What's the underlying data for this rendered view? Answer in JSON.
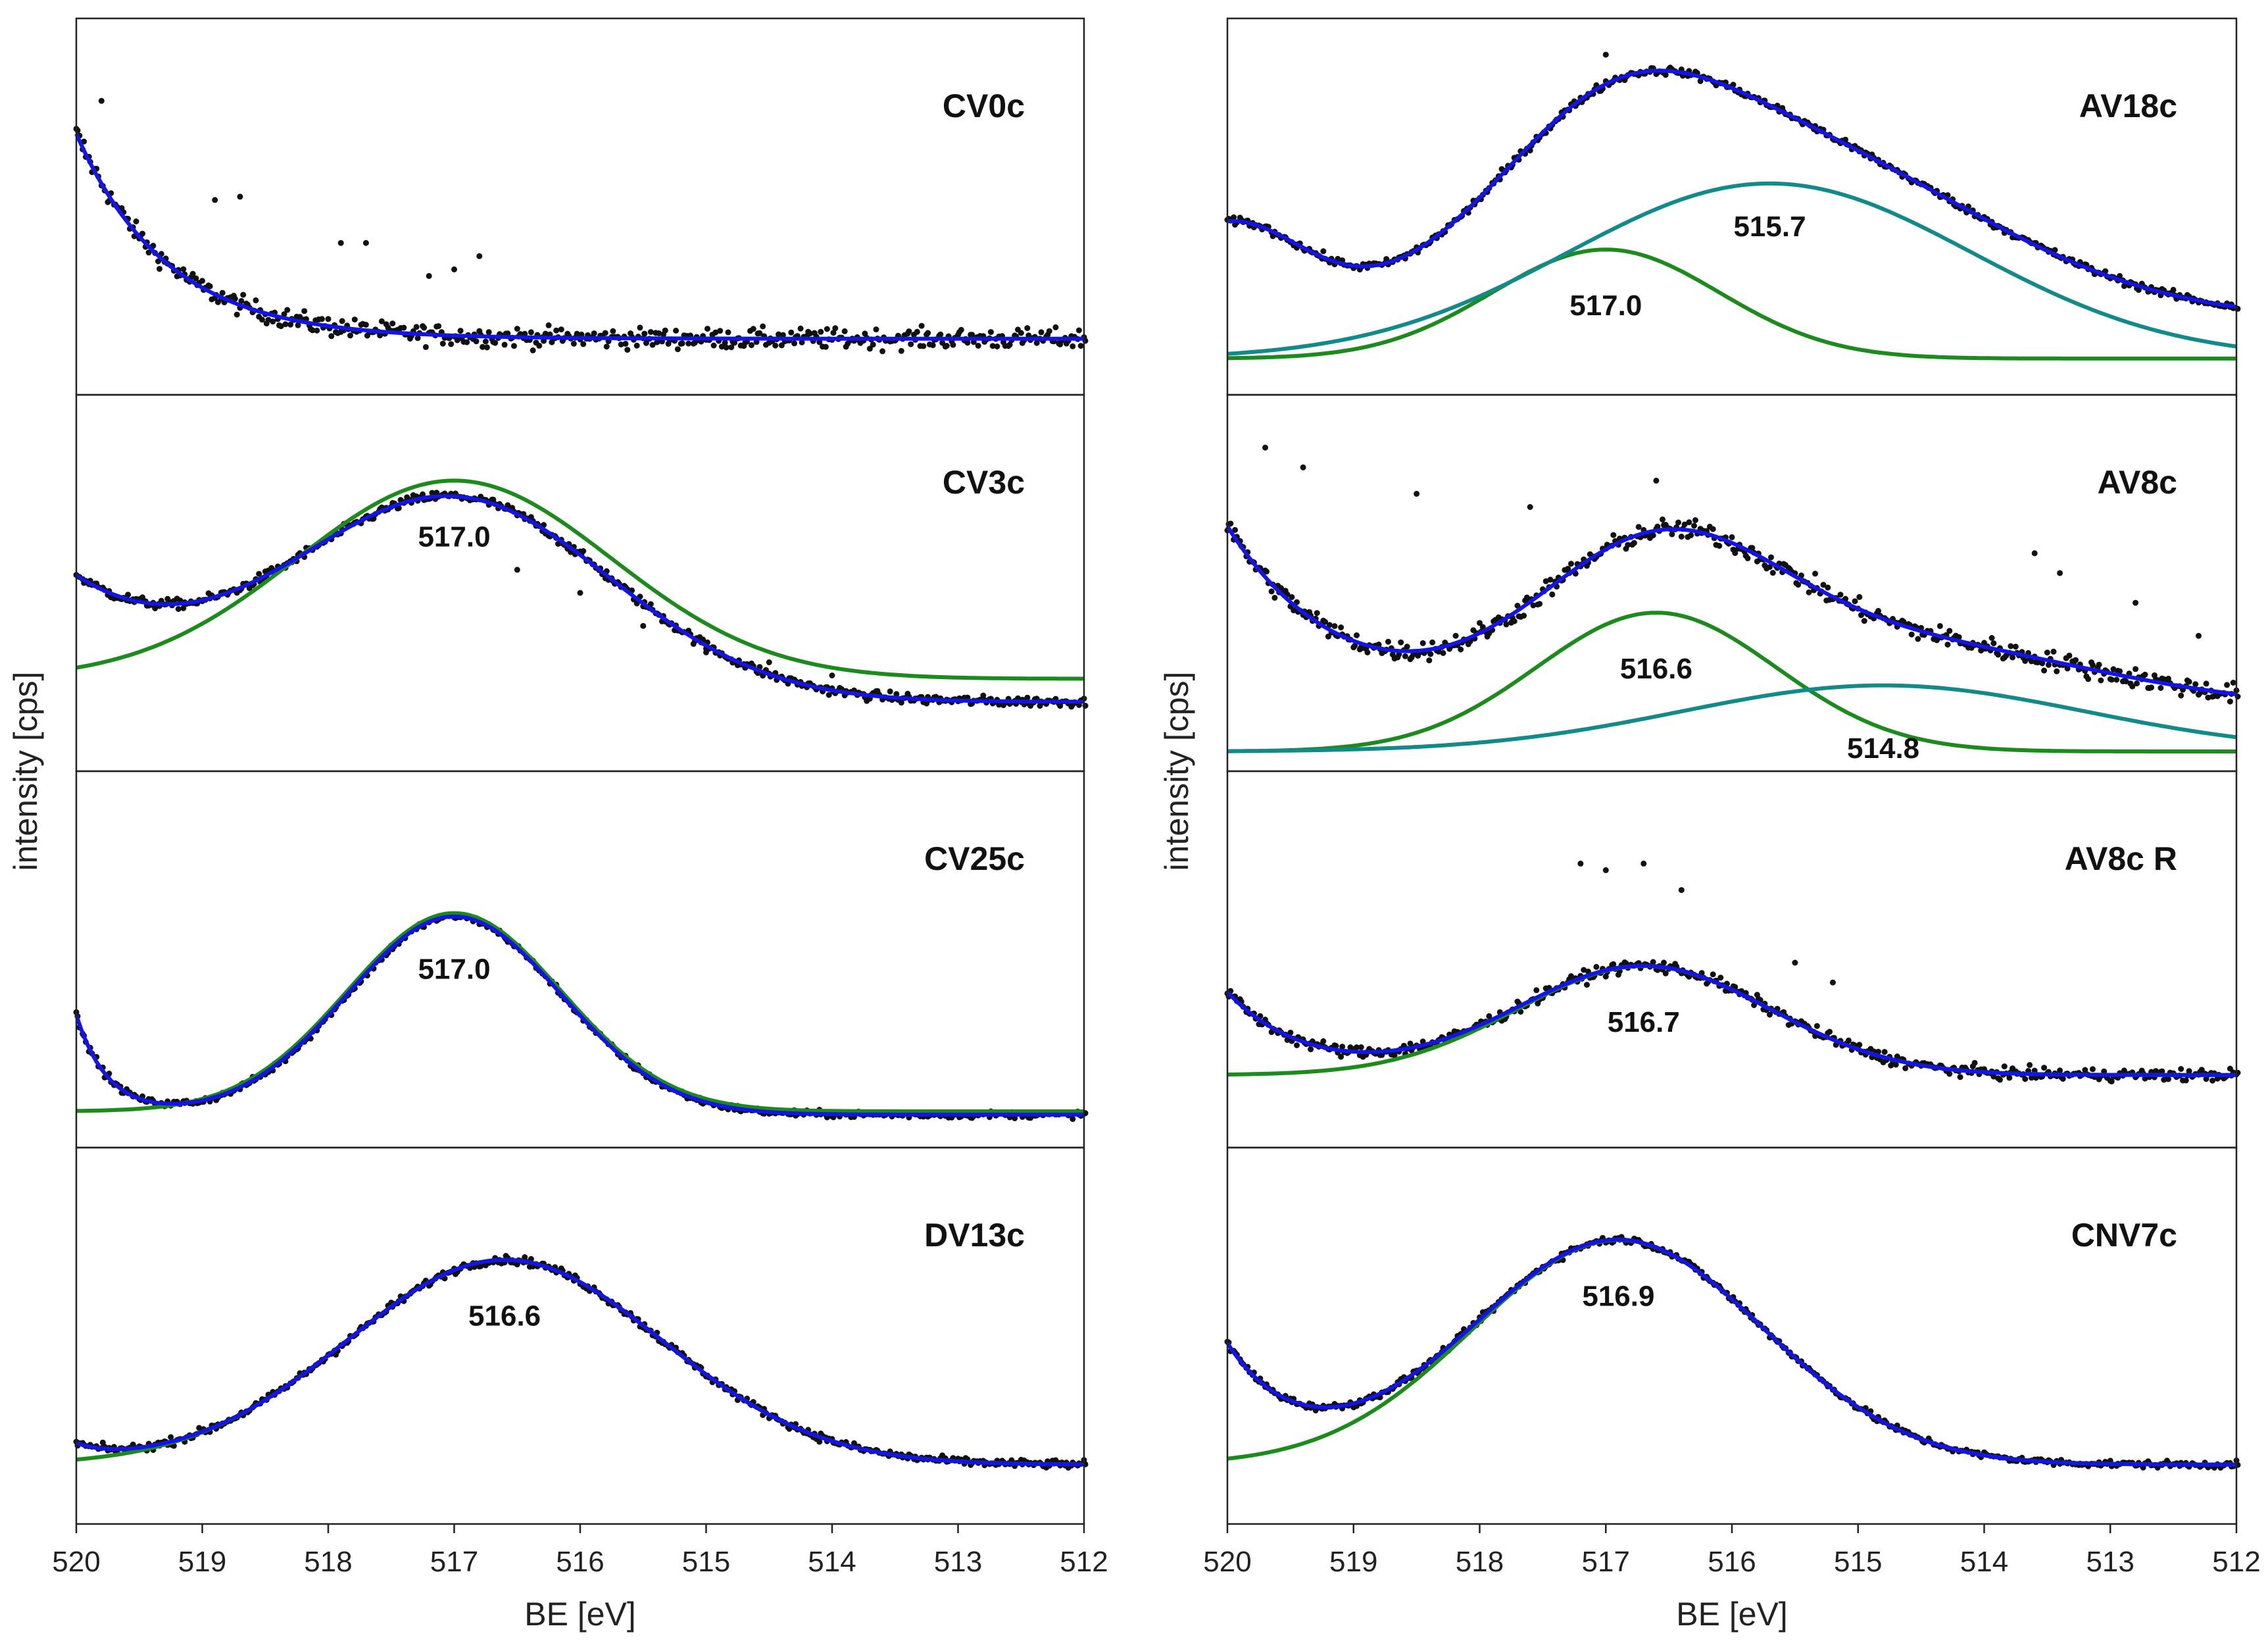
{
  "figure": {
    "description_free": true,
    "colors": {
      "envelope": "#1414e6",
      "component_primary": "#1d8a1d",
      "component_secondary": "#138a8a",
      "data_points": "#111111",
      "smoothed": "#111111",
      "frame": "#222222"
    }
  },
  "chart_data": [
    {
      "type": "line",
      "panel": "CV0c",
      "column": "left",
      "row": 0,
      "xlabel": "BE [eV]",
      "ylabel": "intensity [cps]",
      "xlim": [
        520,
        512
      ],
      "ylim": [
        0,
        1
      ],
      "ticks": [
        520,
        519,
        518,
        517,
        516,
        515,
        514,
        513,
        512
      ],
      "background": {
        "a": 0.11,
        "b": 0.62,
        "decay": 0.72
      },
      "components": [],
      "noise": 0.03,
      "outliers": [
        [
          519.8,
          0.83
        ],
        [
          518.9,
          0.53
        ],
        [
          518.7,
          0.54
        ],
        [
          517.9,
          0.4
        ],
        [
          517.7,
          0.4
        ],
        [
          517.2,
          0.3
        ],
        [
          517.0,
          0.32
        ],
        [
          516.8,
          0.36
        ]
      ]
    },
    {
      "type": "line",
      "panel": "CV3c",
      "column": "left",
      "row": 1,
      "xlabel": "BE [eV]",
      "ylabel": "intensity [cps]",
      "xlim": [
        520,
        512
      ],
      "ylim": [
        0,
        1
      ],
      "ticks": [
        520,
        519,
        518,
        517,
        516,
        515,
        514,
        513,
        512
      ],
      "background": {
        "a": 0.15,
        "b": 0.35,
        "decay": 1.1
      },
      "components": [
        {
          "center": 517.0,
          "amp": 0.6,
          "sigma": 1.25,
          "base": 0.22,
          "color": "primary",
          "label": "517.0"
        }
      ],
      "noise": 0.015,
      "outliers": [
        [
          516.5,
          0.55
        ],
        [
          516.0,
          0.48
        ],
        [
          515.5,
          0.38
        ],
        [
          515.0,
          0.3
        ],
        [
          514.5,
          0.27
        ],
        [
          514.0,
          0.23
        ]
      ]
    },
    {
      "type": "line",
      "panel": "CV25c",
      "column": "left",
      "row": 2,
      "xlabel": "BE [eV]",
      "ylabel": "intensity [cps]",
      "xlim": [
        520,
        512
      ],
      "ylim": [
        0,
        1
      ],
      "ticks": [
        520,
        519,
        518,
        517,
        516,
        515,
        514,
        513,
        512
      ],
      "background": {
        "a": 0.04,
        "b": 0.3,
        "decay": 0.25
      },
      "components": [
        {
          "center": 517.0,
          "amp": 0.6,
          "sigma": 0.85,
          "base": 0.05,
          "color": "primary",
          "label": "517.0"
        }
      ],
      "noise": 0.01,
      "outliers": []
    },
    {
      "type": "line",
      "panel": "DV13c",
      "column": "left",
      "row": 3,
      "xlabel": "BE [eV]",
      "ylabel": "intensity [cps]",
      "xlim": [
        520,
        512
      ],
      "ylim": [
        0,
        1
      ],
      "ticks": [
        520,
        519,
        518,
        517,
        516,
        515,
        514,
        513,
        512
      ],
      "background": {
        "a": 0.12,
        "b": 0.05,
        "decay": 0.3
      },
      "components": [
        {
          "center": 516.6,
          "amp": 0.62,
          "sigma": 1.25,
          "base": 0.12,
          "color": "primary",
          "label": "516.6"
        }
      ],
      "noise": 0.012,
      "outliers": []
    },
    {
      "type": "line",
      "panel": "AV18c",
      "column": "right",
      "row": 0,
      "xlabel": "BE [eV]",
      "ylabel": "intensity [cps]",
      "xlim": [
        520,
        512
      ],
      "ylim": [
        0,
        1
      ],
      "ticks": [
        520,
        519,
        518,
        517,
        516,
        515,
        514,
        513,
        512
      ],
      "background": {
        "a": 0.0,
        "b": 0.0,
        "decay": 1
      },
      "components": [
        {
          "center": 517.0,
          "amp": 0.33,
          "sigma": 0.9,
          "base": 0.0,
          "color": "primary",
          "label": "517.0"
        },
        {
          "center": 515.7,
          "amp": 0.53,
          "sigma": 1.6,
          "base": 0.0,
          "color": "secondary",
          "label": "515.7"
        }
      ],
      "offset": 0.05,
      "extra": {
        "center": 519.8,
        "amp": 0.5,
        "sigma": 0.75
      },
      "noise": 0.012,
      "outliers": [
        [
          517.0,
          0.97
        ]
      ]
    },
    {
      "type": "line",
      "panel": "AV8c",
      "column": "right",
      "row": 1,
      "xlabel": "BE [eV]",
      "ylabel": "intensity [cps]",
      "xlim": [
        520,
        512
      ],
      "ylim": [
        0,
        1
      ],
      "ticks": [
        520,
        519,
        518,
        517,
        516,
        515,
        514,
        513,
        512
      ],
      "background": {
        "a": 0.13,
        "b": 0.55,
        "decay": 0.9
      },
      "components": [
        {
          "center": 516.6,
          "amp": 0.42,
          "sigma": 0.95,
          "base": 0.0,
          "color": "primary",
          "label": "516.6"
        },
        {
          "center": 514.8,
          "amp": 0.2,
          "sigma": 1.6,
          "base": 0.0,
          "color": "secondary",
          "label": "514.8"
        }
      ],
      "noise": 0.03,
      "outliers": [
        [
          519.7,
          0.92
        ],
        [
          519.4,
          0.86
        ],
        [
          518.5,
          0.78
        ],
        [
          517.6,
          0.74
        ],
        [
          516.6,
          0.82
        ],
        [
          513.6,
          0.6
        ],
        [
          513.4,
          0.54
        ],
        [
          512.8,
          0.45
        ],
        [
          512.3,
          0.35
        ]
      ]
    },
    {
      "type": "line",
      "panel": "AV8c R",
      "column": "right",
      "row": 2,
      "xlabel": "BE [eV]",
      "ylabel": "intensity [cps]",
      "xlim": [
        520,
        512
      ],
      "ylim": [
        0,
        1
      ],
      "ticks": [
        520,
        519,
        518,
        517,
        516,
        515,
        514,
        513,
        512
      ],
      "background": {
        "a": 0.16,
        "b": 0.25,
        "decay": 0.6
      },
      "components": [
        {
          "center": 516.7,
          "amp": 0.33,
          "sigma": 1.0,
          "base": 0.16,
          "color": "primary",
          "label": "516.7"
        }
      ],
      "noise": 0.018,
      "outliers": [
        [
          517.2,
          0.8
        ],
        [
          517.0,
          0.78
        ],
        [
          516.7,
          0.8
        ],
        [
          516.4,
          0.72
        ],
        [
          515.5,
          0.5
        ],
        [
          515.2,
          0.44
        ]
      ]
    },
    {
      "type": "line",
      "panel": "CNV7c",
      "column": "right",
      "row": 3,
      "xlabel": "BE [eV]",
      "ylabel": "intensity [cps]",
      "xlim": [
        520,
        512
      ],
      "ylim": [
        0,
        1
      ],
      "ticks": [
        520,
        519,
        518,
        517,
        516,
        515,
        514,
        513,
        512
      ],
      "background": {
        "a": 0.12,
        "b": 0.35,
        "decay": 0.55
      },
      "components": [
        {
          "center": 516.9,
          "amp": 0.68,
          "sigma": 1.15,
          "base": 0.12,
          "color": "primary",
          "label": "516.9"
        }
      ],
      "noise": 0.01,
      "outliers": []
    }
  ]
}
